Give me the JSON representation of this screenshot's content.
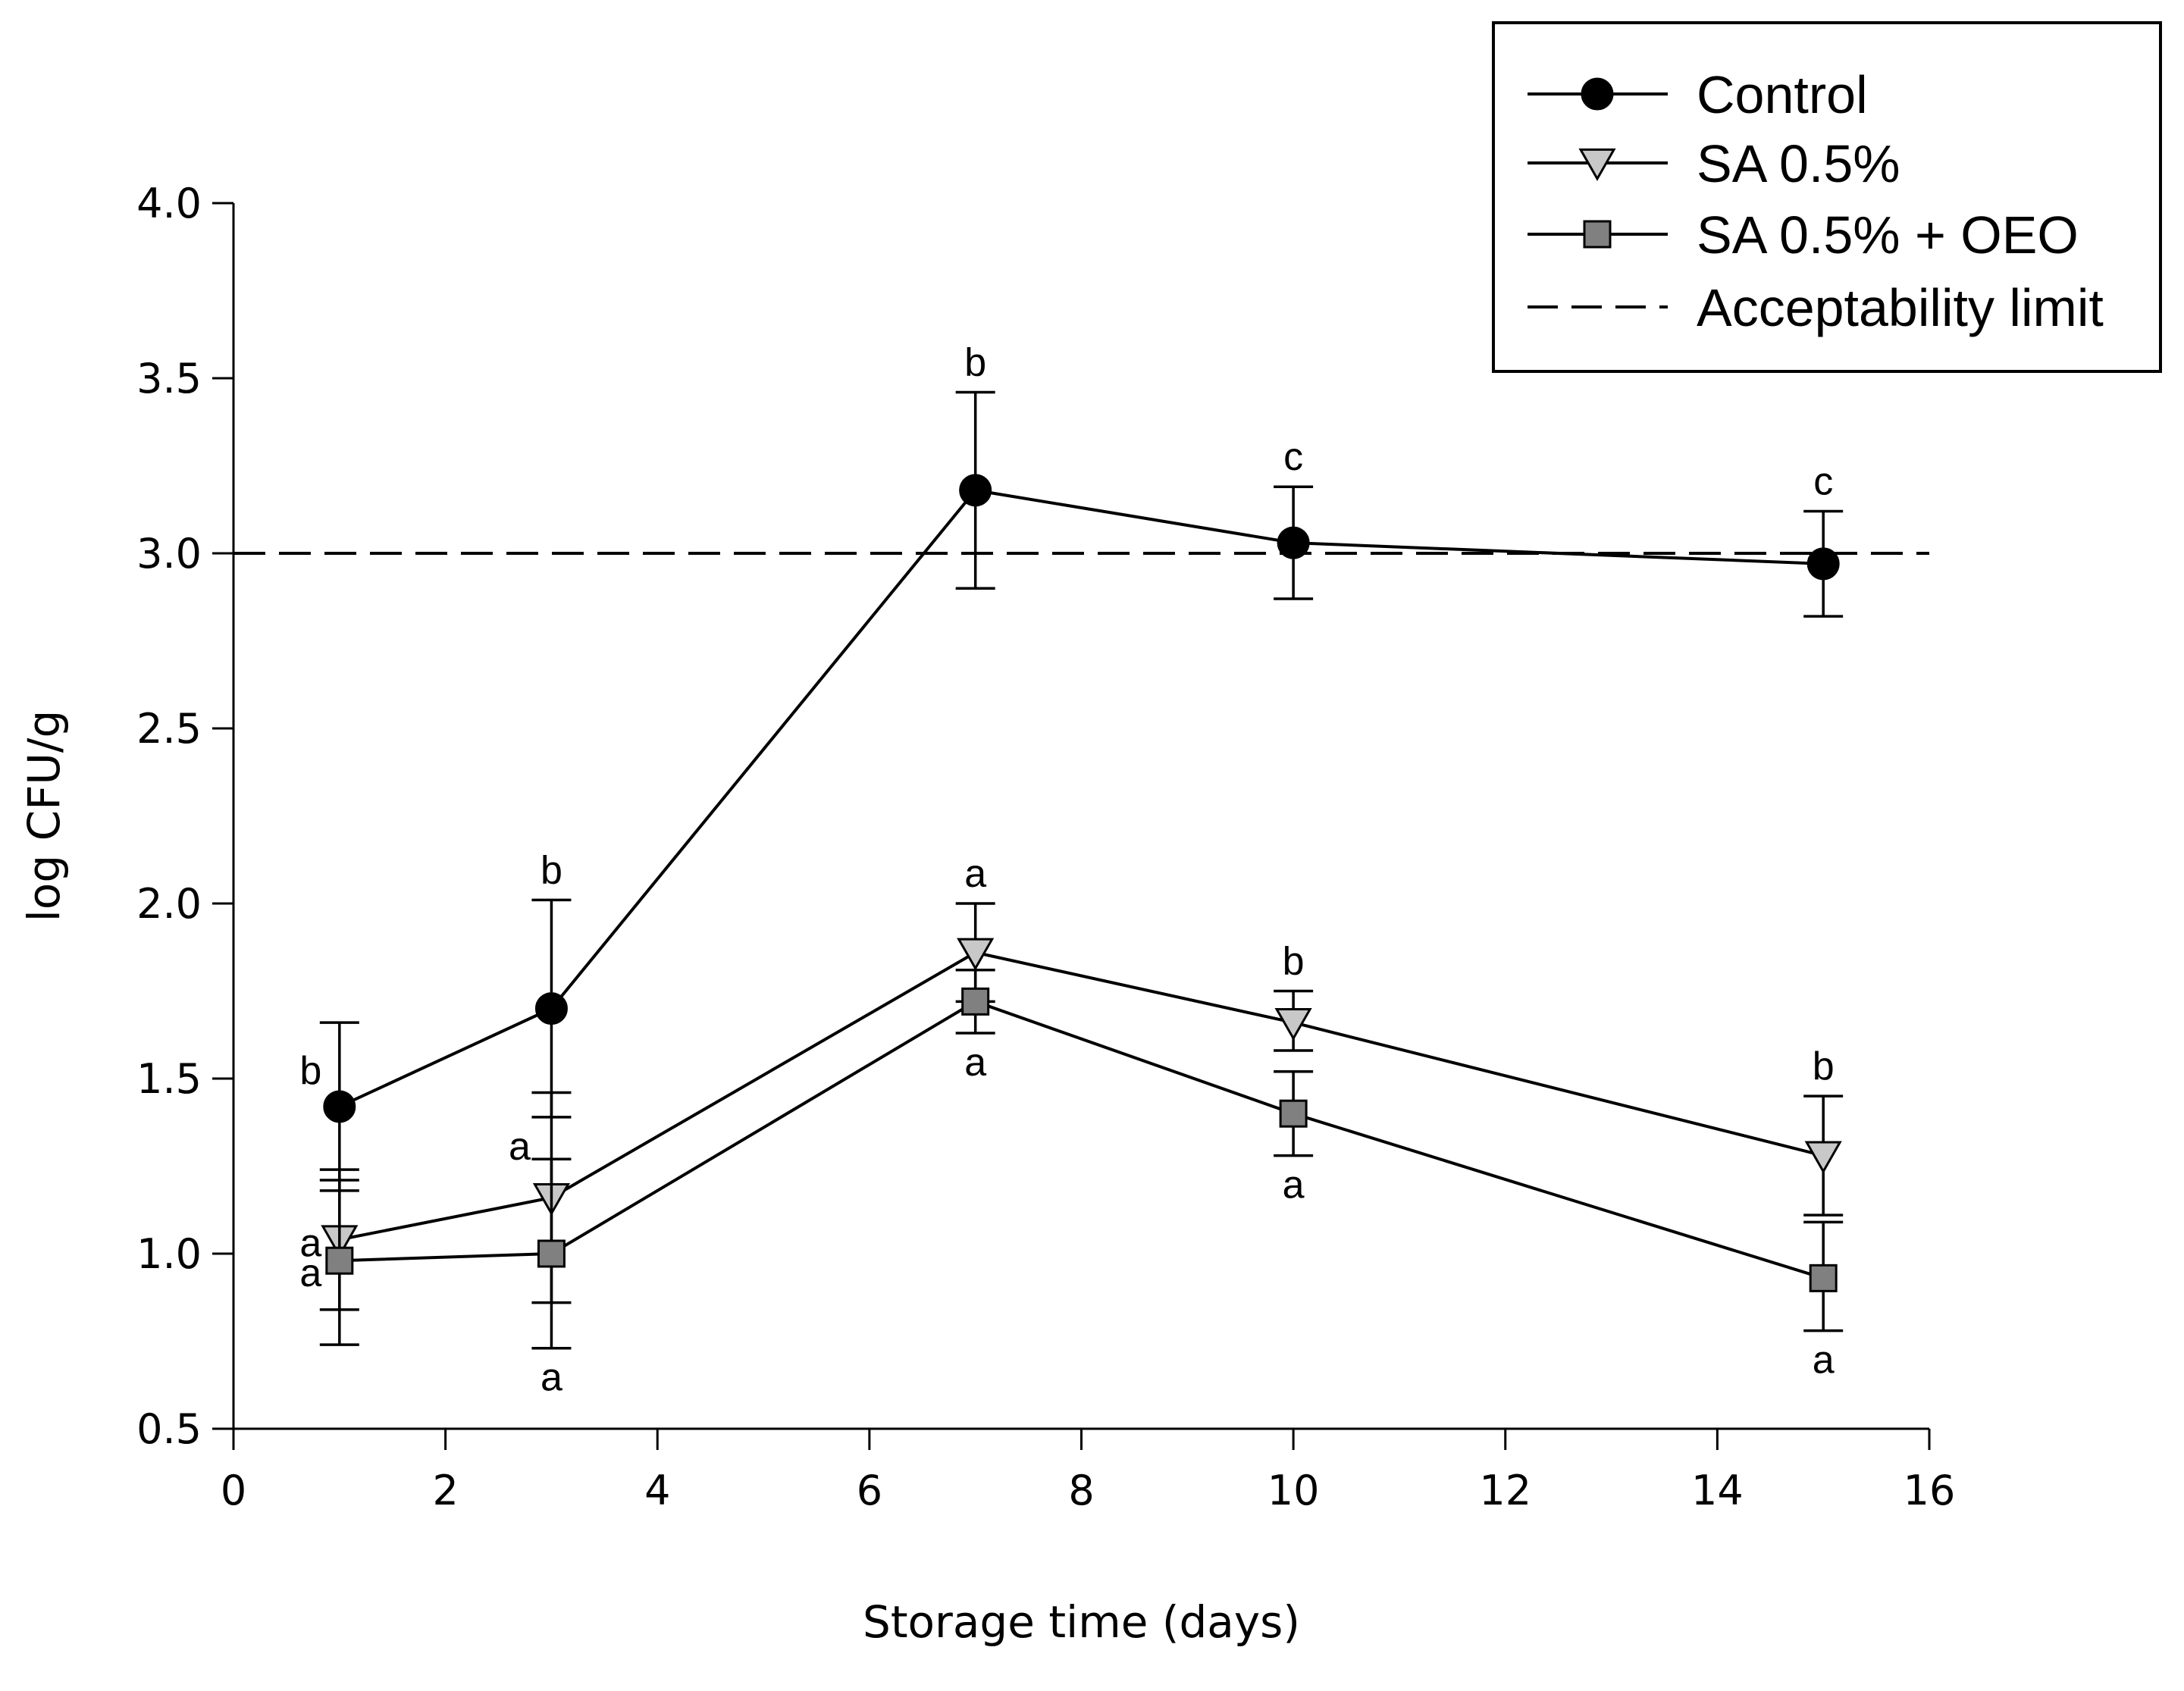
{
  "chart_data": {
    "type": "line",
    "title": "",
    "xlabel": "Storage time (days)",
    "ylabel": "log CFU/g",
    "xlim": [
      0,
      16
    ],
    "ylim": [
      0.5,
      4.0
    ],
    "x_ticks": [
      0,
      2,
      4,
      6,
      8,
      10,
      12,
      14,
      16
    ],
    "y_ticks": [
      0.5,
      1.0,
      1.5,
      2.0,
      2.5,
      3.0,
      3.5,
      4.0
    ],
    "x_tick_labels": [
      "0",
      "2",
      "4",
      "6",
      "8",
      "10",
      "12",
      "14",
      "16"
    ],
    "y_tick_labels": [
      "0.5",
      "1.0",
      "1.5",
      "2.0",
      "2.5",
      "3.0",
      "3.5",
      "4.0"
    ],
    "grid": false,
    "legend_position": "top-right",
    "reference_line": {
      "name": "Acceptability limit",
      "y": 3.0,
      "style": "dashed"
    },
    "series": [
      {
        "name": "Control",
        "marker": "circle",
        "color": "#000000",
        "x": [
          1,
          3,
          7,
          10,
          15
        ],
        "y": [
          1.42,
          1.7,
          3.18,
          3.03,
          2.97
        ],
        "err_upper": [
          1.66,
          2.01,
          3.46,
          3.19,
          3.12
        ],
        "err_lower": [
          1.18,
          1.39,
          2.9,
          2.87,
          2.82
        ],
        "labels": [
          "b",
          "b",
          "b",
          "c",
          "c"
        ]
      },
      {
        "name": "SA 0.5%",
        "marker": "triangle-down",
        "color": "#c8c8c8",
        "x": [
          1,
          3,
          7,
          10,
          15
        ],
        "y": [
          1.04,
          1.16,
          1.86,
          1.66,
          1.28
        ],
        "err_upper": [
          1.24,
          1.46,
          2.0,
          1.75,
          1.45
        ],
        "err_lower": [
          0.84,
          0.86,
          1.72,
          1.58,
          1.11
        ],
        "labels": [
          "a",
          "a",
          "a",
          "b",
          "b"
        ]
      },
      {
        "name": "SA 0.5% + OEO",
        "marker": "square",
        "color": "#808080",
        "x": [
          1,
          3,
          7,
          10,
          15
        ],
        "y": [
          0.98,
          1.0,
          1.72,
          1.4,
          0.93
        ],
        "err_upper": [
          1.21,
          1.27,
          1.81,
          1.52,
          1.09
        ],
        "err_lower": [
          0.74,
          0.73,
          1.63,
          1.28,
          0.78
        ],
        "labels": [
          "a",
          "a",
          "a",
          "a",
          "a"
        ]
      }
    ]
  }
}
